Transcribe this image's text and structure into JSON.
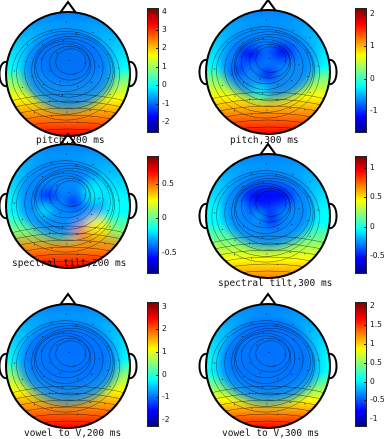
{
  "colorscale": [
    "#00008f",
    "#0000ff",
    "#0080ff",
    "#00ffff",
    "#80ff80",
    "#ffff00",
    "#ff8000",
    "#ff0000",
    "#800000"
  ],
  "panels": [
    {
      "caption": "pitch,200 ms",
      "colorbar": {
        "ticks": [
          "4",
          "3",
          "2",
          "1",
          "0",
          "-1",
          "-2"
        ],
        "range": [
          -2.6,
          4.2
        ]
      },
      "pattern": "frontal-negative-strong"
    },
    {
      "caption": "pitch,300 ms",
      "colorbar": {
        "ticks": [
          "2",
          "1",
          "0",
          "-1"
        ],
        "range": [
          -1.7,
          2.2
        ]
      },
      "pattern": "frontal-negative-spotty"
    },
    {
      "caption": "spectral tilt,200 ms",
      "colorbar": {
        "ticks": [
          "0.5",
          "0",
          "-0.5"
        ],
        "range": [
          -0.8,
          0.9
        ]
      },
      "pattern": "mixed-right-posterior"
    },
    {
      "caption": "spectral tilt,300 ms",
      "colorbar": {
        "ticks": [
          "1",
          "0.5",
          "0",
          "-0.5"
        ],
        "range": [
          -0.8,
          1.2
        ]
      },
      "pattern": "posterior-positive-mild"
    },
    {
      "caption": "vowel to V,200 ms",
      "colorbar": {
        "ticks": [
          "3",
          "2",
          "1",
          "0",
          "-1",
          "-2"
        ],
        "range": [
          -2.3,
          3.2
        ]
      },
      "pattern": "posterior-positive-strong"
    },
    {
      "caption": "vowel to V,300 ms",
      "colorbar": {
        "ticks": [
          "2",
          "1.5",
          "1",
          "0.5",
          "0",
          "-0.5",
          "-1"
        ],
        "range": [
          -1.2,
          2.1
        ]
      },
      "pattern": "posterior-positive-wide"
    }
  ]
}
